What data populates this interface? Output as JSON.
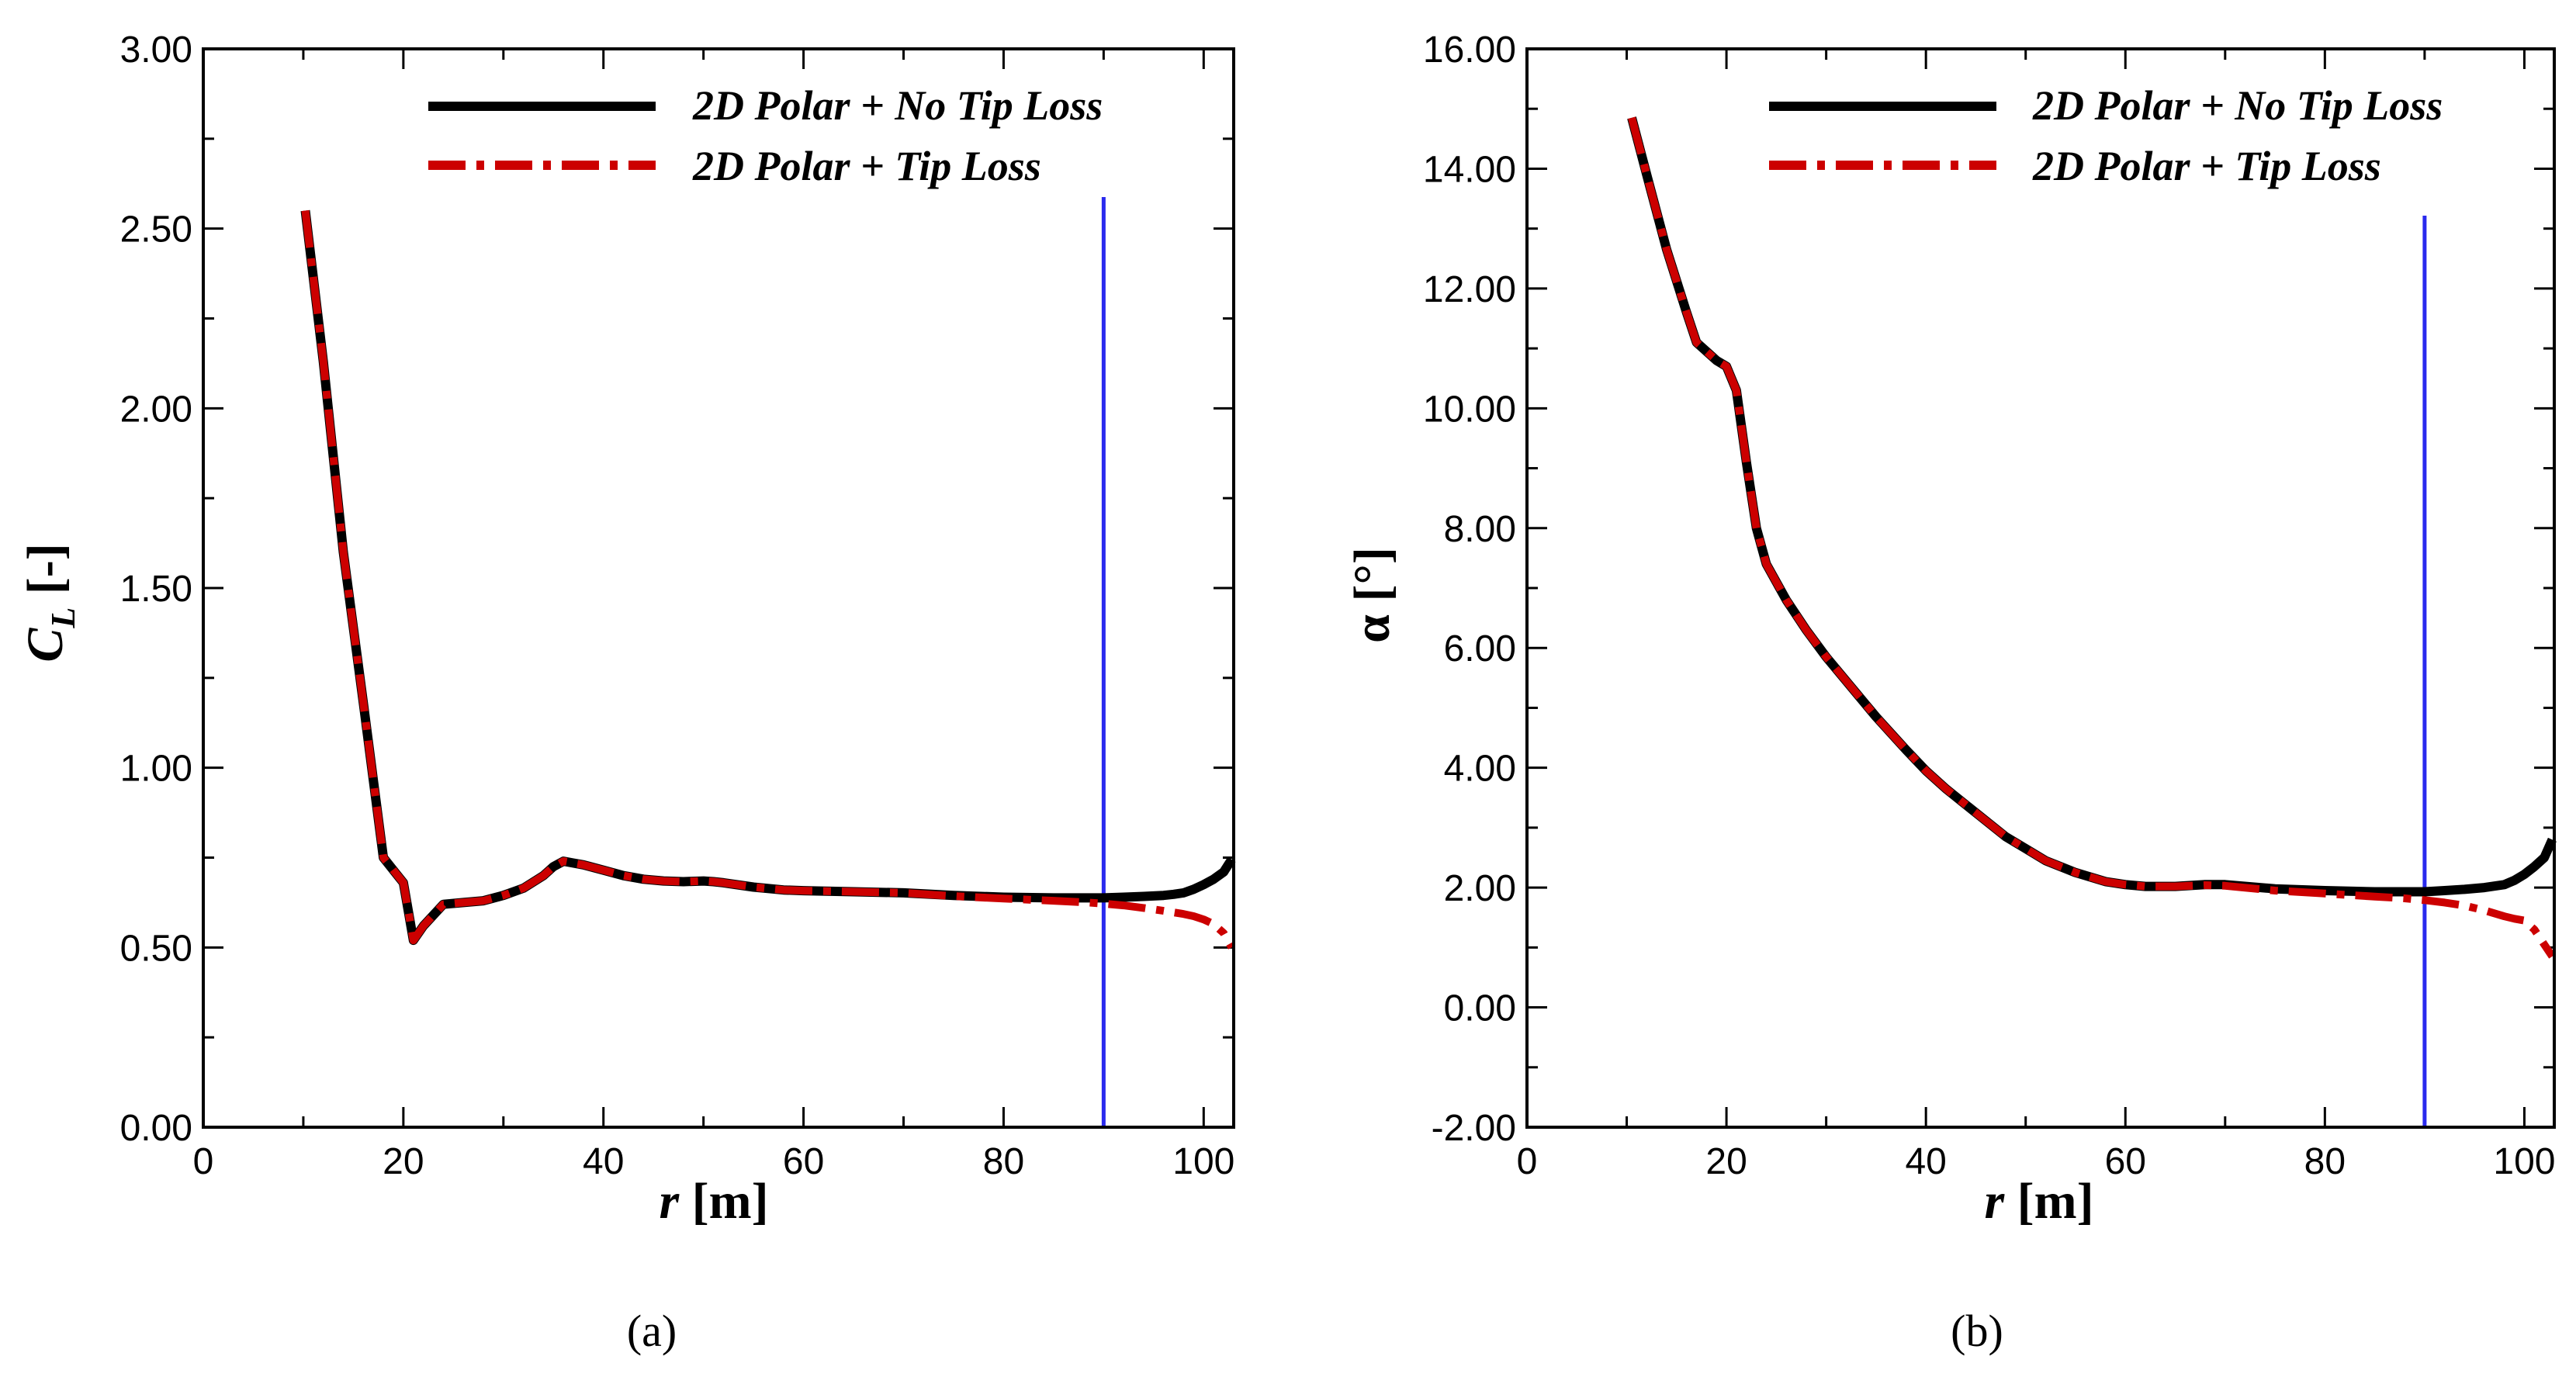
{
  "chart_data": [
    {
      "id": "a",
      "type": "line",
      "caption_letter": "a",
      "xlabel": "r [m]",
      "ylabel": "C_L [-]",
      "xlim": [
        0,
        103
      ],
      "ylim": [
        0,
        3
      ],
      "xticks": [
        "0",
        "20",
        "40",
        "60",
        "80",
        "100"
      ],
      "xtick_values": [
        0,
        20,
        40,
        60,
        80,
        100
      ],
      "yticks": [
        "0.00",
        "0.50",
        "1.00",
        "1.50",
        "2.00",
        "2.50",
        "3.00"
      ],
      "ytick_values": [
        0,
        0.5,
        1.0,
        1.5,
        2.0,
        2.5,
        3.0
      ],
      "xminor": 10,
      "yminor": 0.25,
      "vline_x": 90,
      "legend_position": "top-right",
      "series": [
        {
          "name": "2D Polar + No Tip Loss",
          "color": "#000000",
          "style": "solid",
          "x": [
            10.2,
            12,
            14,
            16,
            18,
            20,
            21,
            22,
            24,
            26,
            28,
            30,
            32,
            34,
            35,
            36,
            37,
            38,
            40,
            42,
            44,
            46,
            48,
            50,
            51,
            52,
            55,
            58,
            60,
            65,
            70,
            75,
            80,
            85,
            90,
            92,
            94,
            96,
            97,
            98,
            99,
            100,
            101,
            102,
            102.8
          ],
          "y": [
            2.55,
            2.13,
            1.6,
            1.18,
            0.75,
            0.68,
            0.52,
            0.56,
            0.62,
            0.625,
            0.63,
            0.645,
            0.665,
            0.7,
            0.725,
            0.74,
            0.735,
            0.73,
            0.715,
            0.7,
            0.69,
            0.685,
            0.683,
            0.685,
            0.683,
            0.68,
            0.668,
            0.66,
            0.658,
            0.655,
            0.652,
            0.645,
            0.64,
            0.638,
            0.638,
            0.64,
            0.642,
            0.645,
            0.648,
            0.652,
            0.662,
            0.675,
            0.69,
            0.71,
            0.745
          ]
        },
        {
          "name": "2D Polar + Tip Loss",
          "color": "#cc0000",
          "style": "dashdot",
          "x": [
            10.2,
            12,
            14,
            16,
            18,
            20,
            21,
            22,
            24,
            26,
            28,
            30,
            32,
            34,
            35,
            36,
            37,
            38,
            40,
            42,
            44,
            46,
            48,
            50,
            51,
            52,
            55,
            58,
            60,
            65,
            70,
            75,
            80,
            85,
            88,
            90,
            92,
            94,
            96,
            98,
            99,
            100,
            101,
            102,
            102.8
          ],
          "y": [
            2.55,
            2.13,
            1.6,
            1.18,
            0.75,
            0.68,
            0.52,
            0.56,
            0.62,
            0.625,
            0.63,
            0.645,
            0.665,
            0.7,
            0.725,
            0.74,
            0.735,
            0.73,
            0.715,
            0.7,
            0.69,
            0.685,
            0.683,
            0.685,
            0.683,
            0.68,
            0.668,
            0.66,
            0.658,
            0.655,
            0.652,
            0.643,
            0.636,
            0.63,
            0.626,
            0.622,
            0.617,
            0.61,
            0.602,
            0.593,
            0.587,
            0.578,
            0.565,
            0.54,
            0.5
          ]
        }
      ]
    },
    {
      "id": "b",
      "type": "line",
      "caption_letter": "b",
      "xlabel": "r [m]",
      "ylabel": "α [°]",
      "xlim": [
        0,
        103
      ],
      "ylim": [
        -2,
        16
      ],
      "xticks": [
        "0",
        "20",
        "40",
        "60",
        "80",
        "100"
      ],
      "xtick_values": [
        0,
        20,
        40,
        60,
        80,
        100
      ],
      "yticks": [
        "-2.00",
        "0.00",
        "2.00",
        "4.00",
        "6.00",
        "8.00",
        "10.00",
        "12.00",
        "14.00",
        "16.00"
      ],
      "ytick_values": [
        -2,
        0,
        2,
        4,
        6,
        8,
        10,
        12,
        14,
        16
      ],
      "xminor": 10,
      "yminor": 1,
      "vline_x": 90,
      "legend_position": "top-right",
      "series": [
        {
          "name": "2D Polar + No Tip Loss",
          "color": "#000000",
          "style": "solid",
          "x": [
            10.5,
            12,
            14,
            16,
            17,
            18,
            19,
            20,
            21,
            22,
            23,
            24,
            26,
            28,
            30,
            32,
            35,
            38,
            40,
            42,
            45,
            48,
            50,
            52,
            55,
            58,
            60,
            62,
            65,
            68,
            70,
            75,
            80,
            85,
            90,
            92,
            94,
            96,
            98,
            99,
            100,
            101,
            102,
            102.8
          ],
          "y": [
            14.85,
            13.9,
            12.65,
            11.6,
            11.1,
            10.95,
            10.8,
            10.7,
            10.3,
            9.1,
            8.0,
            7.4,
            6.8,
            6.3,
            5.85,
            5.45,
            4.85,
            4.3,
            3.95,
            3.65,
            3.25,
            2.85,
            2.65,
            2.45,
            2.25,
            2.1,
            2.05,
            2.02,
            2.02,
            2.05,
            2.05,
            1.98,
            1.95,
            1.93,
            1.93,
            1.95,
            1.97,
            2.0,
            2.05,
            2.12,
            2.22,
            2.35,
            2.5,
            2.8
          ]
        },
        {
          "name": "2D Polar + Tip Loss",
          "color": "#cc0000",
          "style": "dashdot",
          "x": [
            10.5,
            12,
            14,
            16,
            17,
            18,
            19,
            20,
            21,
            22,
            23,
            24,
            26,
            28,
            30,
            32,
            35,
            38,
            40,
            42,
            45,
            48,
            50,
            52,
            55,
            58,
            60,
            62,
            65,
            68,
            70,
            75,
            80,
            85,
            88,
            90,
            92,
            94,
            96,
            98,
            99,
            100,
            101,
            102,
            102.8
          ],
          "y": [
            14.85,
            13.9,
            12.65,
            11.6,
            11.1,
            10.95,
            10.8,
            10.7,
            10.3,
            9.1,
            8.0,
            7.4,
            6.8,
            6.3,
            5.85,
            5.45,
            4.85,
            4.3,
            3.95,
            3.65,
            3.25,
            2.85,
            2.65,
            2.45,
            2.25,
            2.1,
            2.05,
            2.02,
            2.02,
            2.04,
            2.03,
            1.95,
            1.9,
            1.85,
            1.82,
            1.79,
            1.75,
            1.7,
            1.62,
            1.52,
            1.48,
            1.45,
            1.3,
            1.05,
            0.85
          ]
        }
      ]
    }
  ],
  "captions": {
    "a": "(a)",
    "b": "(b)"
  }
}
